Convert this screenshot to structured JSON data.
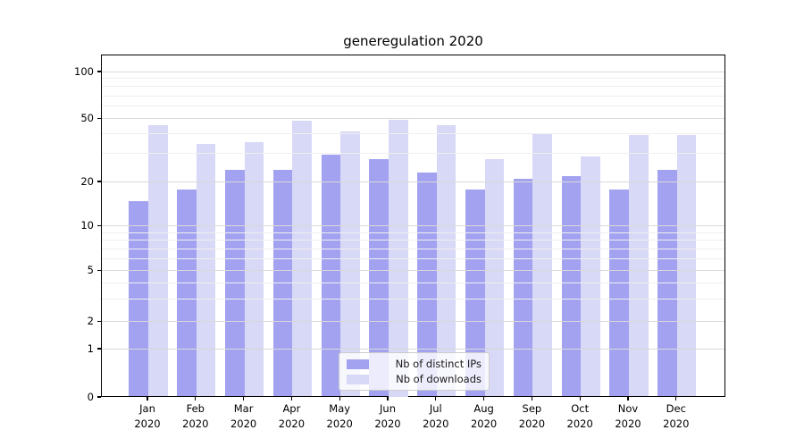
{
  "chart_data": {
    "type": "bar",
    "title": "generegulation 2020",
    "months": [
      "Jan",
      "Feb",
      "Mar",
      "Apr",
      "May",
      "Jun",
      "Jul",
      "Aug",
      "Sep",
      "Oct",
      "Nov",
      "Dec"
    ],
    "year_label": "2020",
    "series": [
      {
        "name": "Nb of distinct IPs",
        "color": "#a2a2f0",
        "values": [
          15,
          18,
          24,
          24,
          30,
          28,
          23,
          18,
          21,
          22,
          18,
          24
        ]
      },
      {
        "name": "Nb of downloads",
        "color": "#d8d8f7",
        "values": [
          46,
          35,
          36,
          49,
          42,
          50,
          46,
          28,
          41,
          29,
          40,
          40
        ]
      }
    ],
    "y_ticks": [
      100,
      50,
      20,
      10,
      5,
      2,
      1,
      0
    ],
    "minor_gridlines": [
      90,
      80,
      70,
      60,
      40,
      30,
      9,
      8,
      7,
      6,
      4,
      3
    ],
    "scale": "symlog",
    "ylim": [
      0,
      130
    ],
    "grid": "on",
    "legend_position": "lower center"
  }
}
